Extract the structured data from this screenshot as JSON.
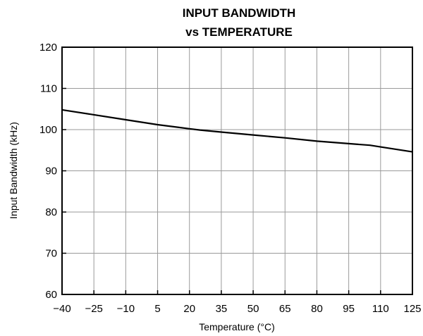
{
  "chart_data": {
    "type": "line",
    "title_lines": [
      "INPUT BANDWIDTH",
      "vs TEMPERATURE"
    ],
    "xlabel": "Temperature (°C)",
    "ylabel": "Input Bandwidth (kHz)",
    "xlim": [
      -40,
      125
    ],
    "ylim": [
      60,
      120
    ],
    "x_ticks": [
      -40,
      -25,
      -10,
      5,
      20,
      35,
      50,
      65,
      80,
      95,
      110,
      125
    ],
    "x_tick_labels": [
      "−40",
      "−25",
      "−10",
      "5",
      "20",
      "35",
      "50",
      "65",
      "80",
      "95",
      "110",
      "125"
    ],
    "y_ticks": [
      60,
      70,
      80,
      90,
      100,
      110,
      120
    ],
    "y_tick_labels": [
      "60",
      "70",
      "80",
      "90",
      "100",
      "110",
      "120"
    ],
    "grid": true,
    "series": [
      {
        "x": [
          -40,
          -25,
          -10,
          5,
          20,
          25,
          35,
          50,
          65,
          80,
          95,
          105,
          110,
          125
        ],
        "y": [
          104.8,
          103.6,
          102.4,
          101.2,
          100.2,
          99.9,
          99.4,
          98.7,
          98.0,
          97.2,
          96.6,
          96.2,
          95.8,
          94.6
        ]
      }
    ]
  }
}
